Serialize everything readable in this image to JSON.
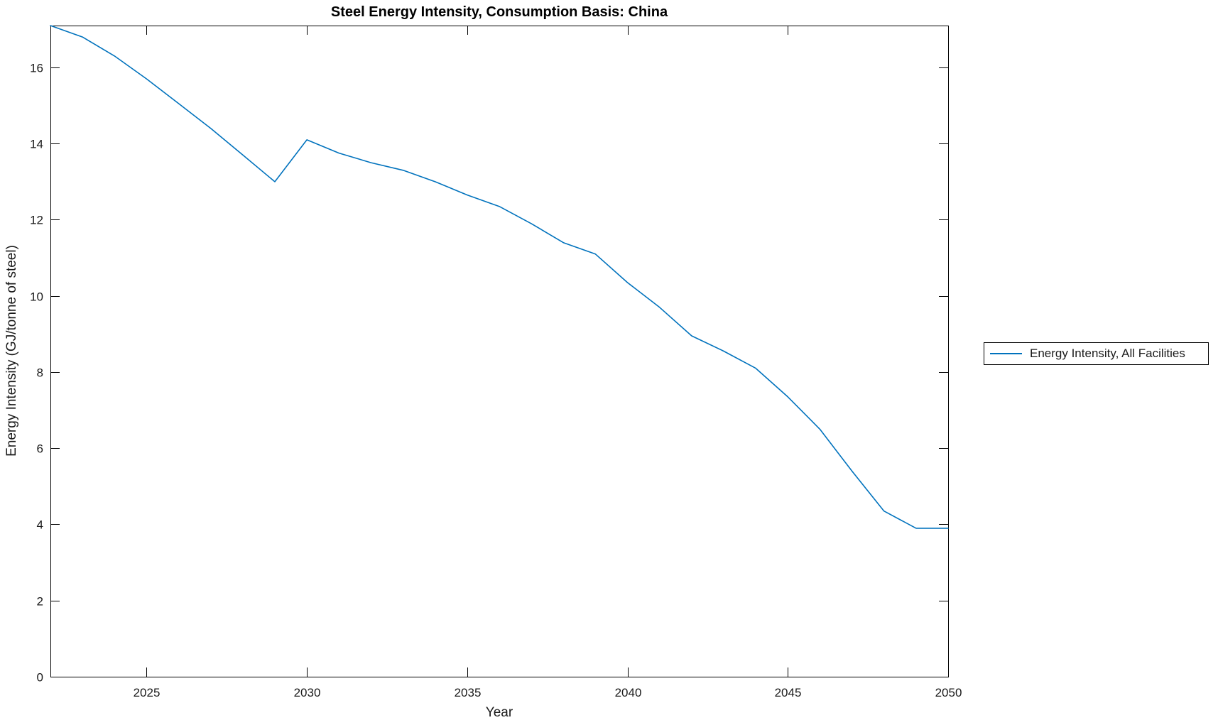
{
  "chart_data": {
    "type": "line",
    "title": "Steel Energy Intensity, Consumption Basis: China",
    "xlabel": "Year",
    "ylabel": "Energy Intensity (GJ/tonne of steel)",
    "x": [
      2022,
      2023,
      2024,
      2025,
      2026,
      2027,
      2028,
      2029,
      2030,
      2031,
      2032,
      2033,
      2034,
      2035,
      2036,
      2037,
      2038,
      2039,
      2040,
      2041,
      2042,
      2043,
      2044,
      2045,
      2046,
      2047,
      2048,
      2049,
      2050
    ],
    "series": [
      {
        "name": "Energy Intensity, All Facilities",
        "color": "#0072BD",
        "values": [
          17.1,
          16.8,
          16.3,
          15.7,
          15.05,
          14.4,
          13.7,
          13.0,
          14.1,
          13.75,
          13.5,
          13.3,
          13.0,
          12.65,
          12.35,
          11.9,
          11.4,
          11.1,
          10.35,
          9.7,
          8.95,
          8.55,
          8.1,
          7.35,
          6.5,
          5.4,
          4.35,
          3.9,
          3.9
        ]
      }
    ],
    "xlim": [
      2022,
      2050
    ],
    "ylim": [
      0,
      17.1
    ],
    "xticks": [
      2025,
      2030,
      2035,
      2040,
      2045,
      2050
    ],
    "yticks": [
      0,
      2,
      4,
      6,
      8,
      10,
      12,
      14,
      16
    ],
    "grid": false,
    "legend_position": "outside-right",
    "tick_direction": "in",
    "axis_color": "#000000",
    "text_color": "#1a1a1a",
    "background": "#ffffff"
  }
}
